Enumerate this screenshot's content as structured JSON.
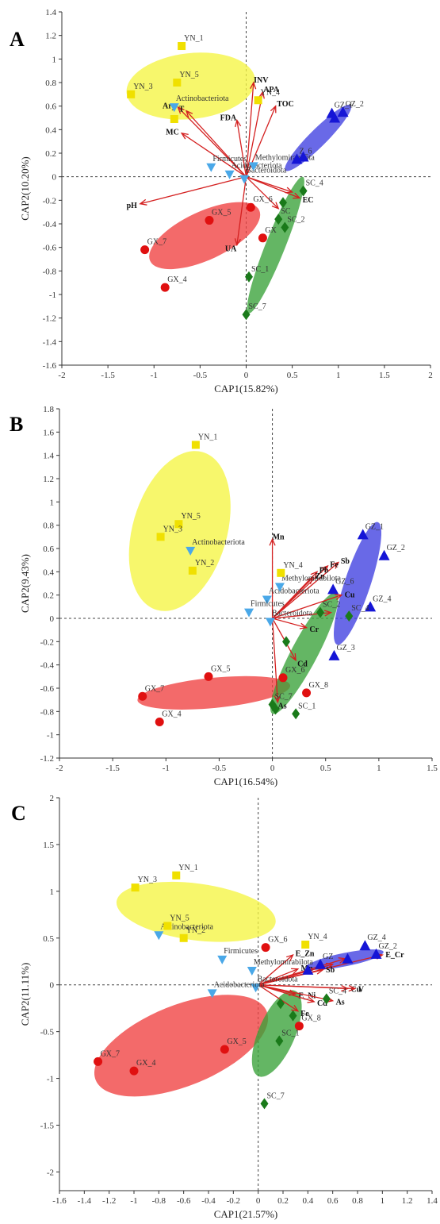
{
  "chart_data": [
    {
      "type": "scatter",
      "panel": "A",
      "xlabel": "CAP1(15.82%)",
      "ylabel": "CAP2(10.20%)",
      "xlim": [
        -2,
        2
      ],
      "ylim": [
        -1.6,
        1.4
      ],
      "xticks": [
        -2,
        -1.5,
        -1,
        -0.5,
        0,
        0.5,
        1,
        1.5,
        2
      ],
      "yticks": [
        -1.6,
        -1.4,
        -1.2,
        -1,
        -0.8,
        -0.6,
        -0.4,
        -0.2,
        0,
        0.2,
        0.4,
        0.6,
        0.8,
        1,
        1.2,
        1.4
      ],
      "xtick_labels": [
        "-2",
        "-1.5",
        "-1",
        "-0.5",
        "0",
        "0.5",
        "1",
        "1.5",
        "2"
      ],
      "ytick_labels": [
        "-1.6",
        "-1.4",
        "-1.2",
        "-1",
        "-0.8",
        "-0.6",
        "-0.4",
        "-0.2",
        "0",
        "0.2",
        "0.4",
        "0.6",
        "0.8",
        "1",
        "1.2",
        "1.4"
      ],
      "ellipses": [
        {
          "group": "YN",
          "color": "#f5f542",
          "cx": -0.6,
          "cy": 0.77,
          "rx": 0.7,
          "ry": 0.28,
          "angle": 5
        },
        {
          "group": "GZ",
          "color": "#3f3fe0",
          "cx": 0.78,
          "cy": 0.33,
          "rx": 0.45,
          "ry": 0.08,
          "angle": 38
        },
        {
          "group": "GX",
          "color": "#ef4040",
          "cx": -0.45,
          "cy": -0.5,
          "rx": 0.63,
          "ry": 0.21,
          "angle": 20
        },
        {
          "group": "SC",
          "color": "#38a238",
          "cx": 0.32,
          "cy": -0.58,
          "rx": 0.65,
          "ry": 0.1,
          "angle": 63
        }
      ],
      "samples": [
        {
          "label": "YN_1",
          "x": -0.7,
          "y": 1.11,
          "group": "YN"
        },
        {
          "label": "YN_5",
          "x": -0.75,
          "y": 0.8,
          "group": "YN"
        },
        {
          "label": "YN_3",
          "x": -1.25,
          "y": 0.7,
          "group": "YN"
        },
        {
          "label": "YN_4",
          "x": 0.13,
          "y": 0.65,
          "group": "YN"
        },
        {
          "label": "",
          "x": -0.78,
          "y": 0.49,
          "group": "YN"
        },
        {
          "label": "GZ_1",
          "x": 0.93,
          "y": 0.54,
          "group": "GZ"
        },
        {
          "label": "GZ_2",
          "x": 1.05,
          "y": 0.55,
          "group": "GZ"
        },
        {
          "label": "",
          "x": 0.96,
          "y": 0.5,
          "group": "GZ"
        },
        {
          "label": "Z_6",
          "x": 0.55,
          "y": 0.15,
          "group": "GZ"
        },
        {
          "label": "",
          "x": 0.62,
          "y": 0.17,
          "group": "GZ"
        },
        {
          "label": "GX_6",
          "x": 0.05,
          "y": -0.26,
          "group": "GX"
        },
        {
          "label": "GX_5",
          "x": -0.4,
          "y": -0.37,
          "group": "GX"
        },
        {
          "label": "GX_7",
          "x": -1.1,
          "y": -0.62,
          "group": "GX"
        },
        {
          "label": "GX_4",
          "x": -0.88,
          "y": -0.94,
          "group": "GX"
        },
        {
          "label": "GX",
          "x": 0.18,
          "y": -0.52,
          "group": "GX"
        },
        {
          "label": "SC_4",
          "x": 0.62,
          "y": -0.12,
          "group": "SC"
        },
        {
          "label": "SC_2",
          "x": 0.42,
          "y": -0.43,
          "group": "SC"
        },
        {
          "label": "SC",
          "x": 0.35,
          "y": -0.36,
          "group": "SC"
        },
        {
          "label": "",
          "x": 0.4,
          "y": -0.22,
          "group": "SC"
        },
        {
          "label": "SC_1",
          "x": 0.03,
          "y": -0.85,
          "group": "SC"
        },
        {
          "label": "SC_7",
          "x": 0.0,
          "y": -1.17,
          "group": "SC"
        }
      ],
      "taxa": [
        {
          "label": "Actinobacteriota",
          "x": -0.78,
          "y": 0.59
        },
        {
          "label": "Firmicutes",
          "x": -0.38,
          "y": 0.08
        },
        {
          "label": "Acidobacteriota",
          "x": -0.18,
          "y": 0.02
        },
        {
          "label": "Bacteroidota",
          "x": -0.02,
          "y": -0.02
        },
        {
          "label": "Methylomirabilota",
          "x": 0.08,
          "y": 0.09
        }
      ],
      "vectors": [
        {
          "label": "INV",
          "x": 0.08,
          "y": 0.8
        },
        {
          "label": "APA",
          "x": 0.18,
          "y": 0.72
        },
        {
          "label": "TOC",
          "x": 0.32,
          "y": 0.6
        },
        {
          "label": "FDA",
          "x": -0.1,
          "y": 0.48
        },
        {
          "label": "Ary",
          "x": -0.74,
          "y": 0.59
        },
        {
          "label": "T",
          "x": -0.65,
          "y": 0.56
        },
        {
          "label": "MC",
          "x": -0.7,
          "y": 0.37
        },
        {
          "label": "pH",
          "x": -1.15,
          "y": -0.23
        },
        {
          "label": "UA",
          "x": -0.1,
          "y": -0.58
        },
        {
          "label": "EC",
          "x": 0.58,
          "y": -0.18
        },
        {
          "label": "",
          "x": 0.5,
          "y": -0.13
        },
        {
          "label": "",
          "x": 0.35,
          "y": -0.27
        }
      ]
    },
    {
      "type": "scatter",
      "panel": "B",
      "xlabel": "CAP1(16.54%)",
      "ylabel": "CAP2(9.43%)",
      "xlim": [
        -2,
        1.5
      ],
      "ylim": [
        -1.2,
        1.8
      ],
      "xticks": [
        -2,
        -1.5,
        -1,
        -0.5,
        0,
        0.5,
        1,
        1.5
      ],
      "yticks": [
        -1.2,
        -1,
        -0.8,
        -0.6,
        -0.4,
        -0.2,
        0,
        0.2,
        0.4,
        0.6,
        0.8,
        1,
        1.2,
        1.4,
        1.6,
        1.8
      ],
      "xtick_labels": [
        "-2",
        "-1.5",
        "-1",
        "-0.5",
        "0",
        "0.5",
        "1",
        "1.5"
      ],
      "ytick_labels": [
        "-1.2",
        "-1",
        "-0.8",
        "-0.6",
        "-0.4",
        "-0.2",
        "0",
        "0.2",
        "0.4",
        "0.6",
        "0.8",
        "1",
        "1.2",
        "1.4",
        "1.6",
        "1.8"
      ],
      "ellipses": [
        {
          "group": "YN",
          "color": "#f5f542",
          "cx": -0.87,
          "cy": 0.75,
          "rx": 0.44,
          "ry": 0.71,
          "angle": -15
        },
        {
          "group": "GZ",
          "color": "#3f3fe0",
          "cx": 0.8,
          "cy": 0.3,
          "rx": 0.56,
          "ry": 0.12,
          "angle": 70
        },
        {
          "group": "GX",
          "color": "#ef4040",
          "cx": -0.55,
          "cy": -0.64,
          "rx": 0.72,
          "ry": 0.13,
          "angle": 5
        },
        {
          "group": "SC",
          "color": "#38a238",
          "cx": 0.3,
          "cy": -0.3,
          "rx": 0.6,
          "ry": 0.12,
          "angle": 60
        }
      ],
      "samples": [
        {
          "label": "YN_1",
          "x": -0.72,
          "y": 1.49,
          "group": "YN"
        },
        {
          "label": "YN_5",
          "x": -0.88,
          "y": 0.81,
          "group": "YN"
        },
        {
          "label": "YN_3",
          "x": -1.05,
          "y": 0.7,
          "group": "YN"
        },
        {
          "label": "YN_2",
          "x": -0.75,
          "y": 0.41,
          "group": "YN"
        },
        {
          "label": "YN_4",
          "x": 0.08,
          "y": 0.39,
          "group": "YN"
        },
        {
          "label": "GZ_1",
          "x": 0.85,
          "y": 0.72,
          "group": "GZ"
        },
        {
          "label": "GZ_2",
          "x": 1.05,
          "y": 0.54,
          "group": "GZ"
        },
        {
          "label": "GZ_6",
          "x": 0.57,
          "y": 0.25,
          "group": "GZ"
        },
        {
          "label": "GZ_4",
          "x": 0.92,
          "y": 0.1,
          "group": "GZ"
        },
        {
          "label": "GZ_3",
          "x": 0.58,
          "y": -0.32,
          "group": "GZ"
        },
        {
          "label": "GX_5",
          "x": -0.6,
          "y": -0.5,
          "group": "GX"
        },
        {
          "label": "GX_6",
          "x": 0.1,
          "y": -0.51,
          "group": "GX"
        },
        {
          "label": "GX_7",
          "x": -1.22,
          "y": -0.67,
          "group": "GX"
        },
        {
          "label": "GX_4",
          "x": -1.06,
          "y": -0.89,
          "group": "GX"
        },
        {
          "label": "GX_8",
          "x": 0.32,
          "y": -0.64,
          "group": "GX"
        },
        {
          "label": "SC_4",
          "x": 0.72,
          "y": 0.02,
          "group": "SC"
        },
        {
          "label": "SC_2",
          "x": 0.45,
          "y": 0.05,
          "group": "SC"
        },
        {
          "label": "",
          "x": 0.13,
          "y": -0.2,
          "group": "SC"
        },
        {
          "label": "SC_7",
          "x": 0.0,
          "y": -0.74,
          "group": "SC"
        },
        {
          "label": "SC_1",
          "x": 0.22,
          "y": -0.82,
          "group": "SC"
        },
        {
          "label": "",
          "x": 0.03,
          "y": -0.78,
          "group": "SC"
        }
      ],
      "taxa": [
        {
          "label": "Actinobacteriota",
          "x": -0.77,
          "y": 0.58
        },
        {
          "label": "Acidobacteriota",
          "x": -0.05,
          "y": 0.16
        },
        {
          "label": "Firmicutes",
          "x": -0.22,
          "y": 0.05
        },
        {
          "label": "Methylomirabilota",
          "x": 0.07,
          "y": 0.27
        },
        {
          "label": "Bacteroidota",
          "x": -0.02,
          "y": -0.03
        }
      ],
      "vectors": [
        {
          "label": "Mn",
          "x": 0.0,
          "y": 0.68
        },
        {
          "label": "Sb",
          "x": 0.62,
          "y": 0.48
        },
        {
          "label": "Fe",
          "x": 0.52,
          "y": 0.45
        },
        {
          "label": "Pb",
          "x": 0.42,
          "y": 0.4
        },
        {
          "label": "Zn",
          "x": 0.38,
          "y": 0.35
        },
        {
          "label": "Cu",
          "x": 0.65,
          "y": 0.2
        },
        {
          "label": "Cr",
          "x": 0.32,
          "y": -0.08
        },
        {
          "label": "Cd",
          "x": 0.22,
          "y": -0.36
        },
        {
          "label": "As",
          "x": 0.05,
          "y": -0.72
        },
        {
          "label": "",
          "x": 0.55,
          "y": 0.05
        }
      ]
    },
    {
      "type": "scatter",
      "panel": "C",
      "xlabel": "CAP1(21.57%)",
      "ylabel": "CAP2(11.11%)",
      "xlim": [
        -1.6,
        1.4
      ],
      "ylim": [
        -2.2,
        2
      ],
      "xticks": [
        -1.6,
        -1.4,
        -1.2,
        -1,
        -0.8,
        -0.6,
        -0.4,
        -0.2,
        0,
        0.2,
        0.4,
        0.6,
        0.8,
        1,
        1.2,
        1.4
      ],
      "yticks": [
        -2,
        -1.5,
        -1,
        -0.5,
        0,
        0.5,
        1,
        1.5,
        2
      ],
      "xtick_labels": [
        "-1.6",
        "-1.4",
        "-1.2",
        "-1",
        "-0.8",
        "-0.6",
        "-0.4",
        "-0.2",
        "0",
        "0.2",
        "0.4",
        "0.6",
        "0.8",
        "1",
        "1.2",
        "1.4"
      ],
      "ytick_labels": [
        "-2",
        "-1.5",
        "-1",
        "-0.5",
        "0",
        "0.5",
        "1",
        "1.5",
        "2"
      ],
      "ellipses": [
        {
          "group": "YN",
          "color": "#f5f542",
          "cx": -0.5,
          "cy": 0.78,
          "rx": 0.65,
          "ry": 0.3,
          "angle": -10
        },
        {
          "group": "GZ",
          "color": "#3f3fe0",
          "cx": 0.7,
          "cy": 0.27,
          "rx": 0.32,
          "ry": 0.07,
          "angle": 15
        },
        {
          "group": "GX",
          "color": "#ef4040",
          "cx": -0.62,
          "cy": -0.65,
          "rx": 0.78,
          "ry": 0.4,
          "angle": 28
        },
        {
          "group": "SC",
          "color": "#38a238",
          "cx": 0.15,
          "cy": -0.52,
          "rx": 0.48,
          "ry": 0.15,
          "angle": 72
        }
      ],
      "samples": [
        {
          "label": "YN_1",
          "x": -0.66,
          "y": 1.17,
          "group": "YN"
        },
        {
          "label": "YN_3",
          "x": -0.99,
          "y": 1.04,
          "group": "YN"
        },
        {
          "label": "YN_5",
          "x": -0.73,
          "y": 0.63,
          "group": "YN"
        },
        {
          "label": "YN_2",
          "x": -0.6,
          "y": 0.5,
          "group": "YN"
        },
        {
          "label": "YN_4",
          "x": 0.38,
          "y": 0.43,
          "group": "YN"
        },
        {
          "label": "GZ_4",
          "x": 0.86,
          "y": 0.42,
          "group": "GZ"
        },
        {
          "label": "GZ_2",
          "x": 0.95,
          "y": 0.33,
          "group": "GZ"
        },
        {
          "label": "",
          "x": 0.72,
          "y": 0.28,
          "group": "GZ"
        },
        {
          "label": "GZ",
          "x": 0.5,
          "y": 0.22,
          "group": "GZ"
        },
        {
          "label": "",
          "x": 0.4,
          "y": 0.16,
          "group": "GZ"
        },
        {
          "label": "GX_6",
          "x": 0.06,
          "y": 0.4,
          "group": "GX"
        },
        {
          "label": "GX_7",
          "x": -1.29,
          "y": -0.82,
          "group": "GX"
        },
        {
          "label": "GX_4",
          "x": -1.0,
          "y": -0.92,
          "group": "GX"
        },
        {
          "label": "GX_5",
          "x": -0.27,
          "y": -0.69,
          "group": "GX"
        },
        {
          "label": "GX_8",
          "x": 0.33,
          "y": -0.44,
          "group": "GX"
        },
        {
          "label": "SC_4",
          "x": 0.55,
          "y": -0.15,
          "group": "SC"
        },
        {
          "label": "",
          "x": 0.18,
          "y": -0.2,
          "group": "SC"
        },
        {
          "label": "",
          "x": 0.28,
          "y": -0.33,
          "group": "SC"
        },
        {
          "label": "SC_1",
          "x": 0.17,
          "y": -0.6,
          "group": "SC"
        },
        {
          "label": "SC_7",
          "x": 0.05,
          "y": -1.27,
          "group": "SC"
        }
      ],
      "taxa": [
        {
          "label": "Actinobacteriota",
          "x": -0.8,
          "y": 0.53
        },
        {
          "label": "Firmicutes",
          "x": -0.29,
          "y": 0.27
        },
        {
          "label": "Methylomirabilota",
          "x": -0.05,
          "y": 0.15
        },
        {
          "label": "Bacteroidota",
          "x": -0.02,
          "y": -0.03
        },
        {
          "label": "Acidobacteriota",
          "x": -0.37,
          "y": -0.09
        }
      ],
      "vectors": [
        {
          "label": "E_Cr",
          "x": 1.0,
          "y": 0.32
        },
        {
          "label": "E_Zn",
          "x": 0.28,
          "y": 0.32
        },
        {
          "label": "Mn",
          "x": 0.32,
          "y": 0.17
        },
        {
          "label": "Sb",
          "x": 0.52,
          "y": 0.16
        },
        {
          "label": "E_Ni",
          "x": 0.3,
          "y": -0.1
        },
        {
          "label": "Cu",
          "x": 0.72,
          "y": -0.04
        },
        {
          "label": "V",
          "x": 0.78,
          "y": -0.04
        },
        {
          "label": "As",
          "x": 0.6,
          "y": -0.17
        },
        {
          "label": "Cd",
          "x": 0.45,
          "y": -0.18
        },
        {
          "label": "Fe",
          "x": 0.32,
          "y": -0.28
        },
        {
          "label": "",
          "x": 0.7,
          "y": 0.28
        },
        {
          "label": "",
          "x": 0.6,
          "y": 0.22
        }
      ]
    }
  ],
  "panels": [
    {
      "letter": "A"
    },
    {
      "letter": "B"
    },
    {
      "letter": "C"
    }
  ],
  "colors": {
    "YN": "#f0e000",
    "GZ": "#1515d6",
    "GX": "#e01010",
    "SC": "#1a7a1a",
    "taxa": "#4aa8e8",
    "vector": "#d42020"
  }
}
